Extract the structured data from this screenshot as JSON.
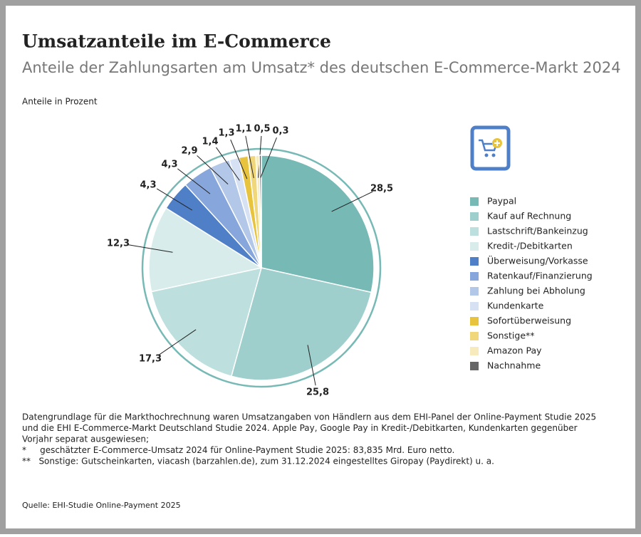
{
  "chart_data": {
    "type": "pie",
    "title": "Umsatzanteile im E-Commerce",
    "subtitle": "Anteile der Zahlungsarten am Umsatz* des deutschen E-Commerce-Markt 2024",
    "unit_label": "Anteile in Prozent",
    "categories": [
      "Paypal",
      "Kauf auf Rechnung",
      "Lastschrift/Bankeinzug",
      "Kredit-/Debitkarten",
      "Überweisung/Vorkasse",
      "Ratenkauf/Finanzierung",
      "Zahlung bei Abholung",
      "Kundenkarte",
      "Sofortüberweisung",
      "Sonstige**",
      "Amazon Pay",
      "Nachnahme"
    ],
    "values": [
      28.5,
      25.8,
      17.3,
      12.3,
      4.3,
      4.3,
      2.9,
      1.4,
      1.3,
      1.1,
      0.5,
      0.3
    ],
    "value_labels": [
      "28,5",
      "25,8",
      "17,3",
      "12,3",
      "4,3",
      "4,3",
      "2,9",
      "1,4",
      "1,3",
      "1,1",
      "0,5",
      "0,3"
    ],
    "colors": [
      "#76b9b5",
      "#9ecfcc",
      "#bde0de",
      "#d7eceb",
      "#4f7fc7",
      "#86a6dc",
      "#b3c8e8",
      "#d6e2f3",
      "#e8c43e",
      "#f0d77c",
      "#f7ebbe",
      "#666666"
    ],
    "notes": [
      "Datengrundlage für die Markthochrechnung waren Umsatzangaben von Händlern aus dem EHI-Panel der Online-Payment Studie 2025",
      "und die EHI E-Commerce-Markt Deutschland Studie 2024. Apple Pay, Google Pay in Kredit-/Debitkarten, Kundenkarten gegenüber",
      "Vorjahr separat ausgewiesen;",
      "*     geschätzter E-Commerce-Umsatz 2024 für Online-Payment Studie 2025: 83,835 Mrd. Euro netto.",
      "**   Sonstige: Gutscheinkarten, viacash (barzahlen.de), zum 31.12.2024 eingestelltes Giropay (Paydirekt) u. a."
    ],
    "source": "Quelle: EHI-Studie Online-Payment 2025"
  }
}
